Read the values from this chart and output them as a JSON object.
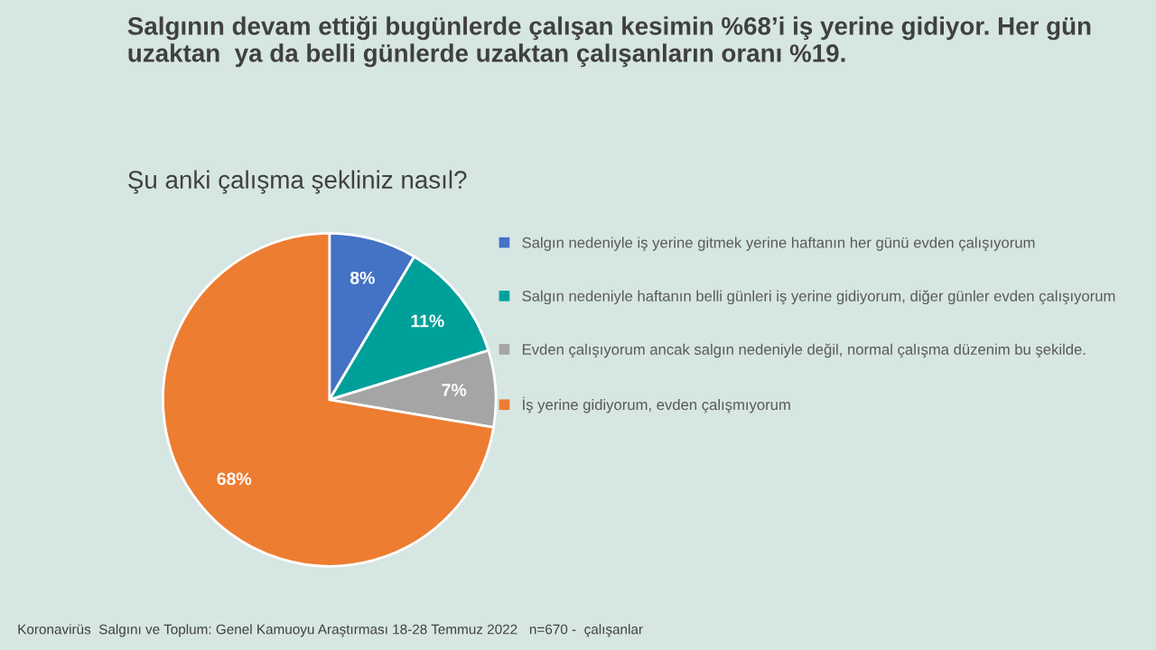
{
  "chart_data": {
    "type": "pie",
    "title": "Salgının devam ettiği bugünlerde çalışan kesimin %68’i iş yerine gidiyor. Her gün uzaktan  ya da belli günlerde uzaktan çalışanların oranı %19.",
    "subtitle": "Şu anki çalışma şekliniz nasıl?",
    "categories": [
      "Salgın nedeniyle iş yerine gitmek yerine haftanın her günü evden çalışıyorum",
      "Salgın nedeniyle haftanın belli günleri iş yerine gidiyorum, diğer günler evden çalışıyorum",
      "Evden çalışıyorum ancak salgın nedeniyle değil, normal çalışma düzenim bu şekilde.",
      "İş yerine gidiyorum, evden çalışmıyorum"
    ],
    "values": [
      8,
      11,
      7,
      68
    ],
    "colors": [
      "#4472c4",
      "#00a09a",
      "#a5a5a5",
      "#ed7d31"
    ],
    "value_labels": [
      "8%",
      "11%",
      "7%",
      "68%"
    ],
    "legend": "right",
    "annotations": [
      "Koronavirüs  Salgını ve Toplum: Genel Kamuoyu Araştırması 18-28 Temmuz 2022   n=670 -  çalışanlar"
    ]
  }
}
